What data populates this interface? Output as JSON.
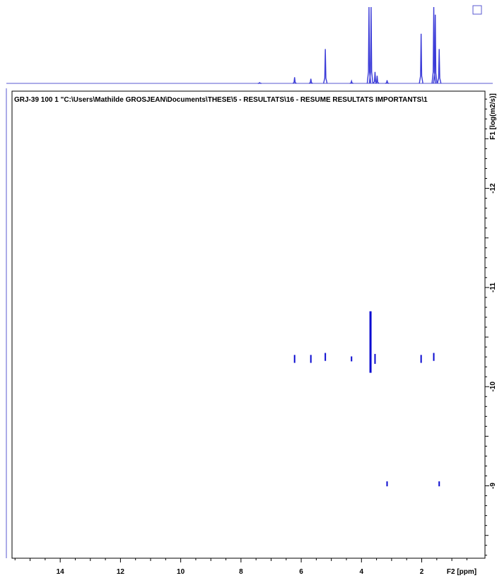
{
  "chart_data": {
    "type": "scatter",
    "header": "GRJ-39  100  1  \"C:\\Users\\Mathilde GROSJEAN\\Documents\\THESE\\5 - RESULTATS\\16 - RESUME RESULTATS IMPORTANTS\\1",
    "xlabel": "F2 [ppm]",
    "ylabel": "F1 [log(m2/s)]",
    "x_ticks": [
      14,
      12,
      10,
      8,
      6,
      4,
      2
    ],
    "y_ticks": [
      -12,
      -11,
      -10,
      -9
    ],
    "xlim": [
      15.6,
      -0.1
    ],
    "ylim": [
      -12.98,
      -8.27
    ],
    "grid": false,
    "colors": {
      "trace": "#3b3bd8",
      "contour": "#0a0ad0",
      "axis": "#000000",
      "frame": "#5a5ad0"
    },
    "spectrum_peaks": [
      {
        "ppm": 7.38,
        "height": 0.01
      },
      {
        "ppm": 6.22,
        "height": 0.08
      },
      {
        "ppm": 5.68,
        "height": 0.06
      },
      {
        "ppm": 5.2,
        "height": 0.45
      },
      {
        "ppm": 4.33,
        "height": 0.03
      },
      {
        "ppm": 3.75,
        "height": 1.0
      },
      {
        "ppm": 3.68,
        "height": 1.0
      },
      {
        "ppm": 3.55,
        "height": 0.15
      },
      {
        "ppm": 3.48,
        "height": 0.1
      },
      {
        "ppm": 3.15,
        "height": 0.04
      },
      {
        "ppm": 2.02,
        "height": 0.65
      },
      {
        "ppm": 1.6,
        "height": 1.0
      },
      {
        "ppm": 1.55,
        "height": 0.9
      },
      {
        "ppm": 1.42,
        "height": 0.45
      }
    ],
    "dosy_signals": [
      {
        "ppm": 6.22,
        "logD": -10.28,
        "spread": 0.04
      },
      {
        "ppm": 5.68,
        "logD": -10.28,
        "spread": 0.04
      },
      {
        "ppm": 5.2,
        "logD": -10.3,
        "spread": 0.04
      },
      {
        "ppm": 4.33,
        "logD": -10.28,
        "spread": 0.02
      },
      {
        "ppm": 3.7,
        "logD": -10.45,
        "spread": 0.31
      },
      {
        "ppm": 3.55,
        "logD": -10.28,
        "spread": 0.05
      },
      {
        "ppm": 2.02,
        "logD": -10.28,
        "spread": 0.04
      },
      {
        "ppm": 1.6,
        "logD": -10.3,
        "spread": 0.04
      },
      {
        "ppm": 3.15,
        "logD": -9.02,
        "spread": 0.01
      },
      {
        "ppm": 1.42,
        "logD": -9.02,
        "spread": 0.01
      }
    ]
  }
}
